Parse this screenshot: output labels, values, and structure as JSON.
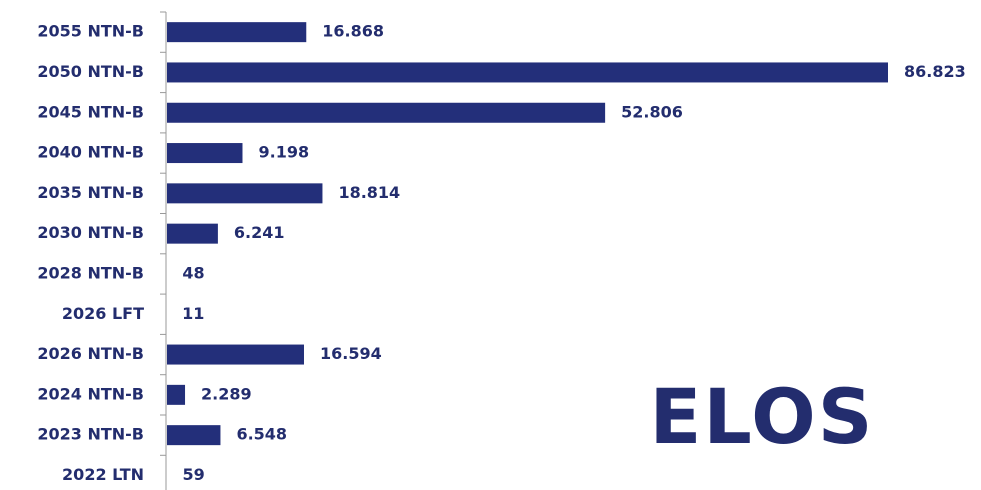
{
  "chart_data": {
    "type": "bar",
    "orientation": "horizontal",
    "categories": [
      "2055 NTN-B",
      "2050 NTN-B",
      "2045 NTN-B",
      "2040 NTN-B",
      "2035 NTN-B",
      "2030 NTN-B",
      "2028 NTN-B",
      "2026 LFT",
      "2026 NTN-B",
      "2024 NTN-B",
      "2023 NTN-B",
      "2022 LTN"
    ],
    "values": [
      16868,
      86823,
      52806,
      9198,
      18814,
      6241,
      48,
      11,
      16594,
      2289,
      6548,
      59
    ],
    "value_labels": [
      "16.868",
      "86.823",
      "52.806",
      "9.198",
      "18.814",
      "6.241",
      "48",
      "11",
      "16.594",
      "2.289",
      "6.548",
      "59"
    ],
    "color": "#232f7a",
    "logo": "ELOS"
  }
}
